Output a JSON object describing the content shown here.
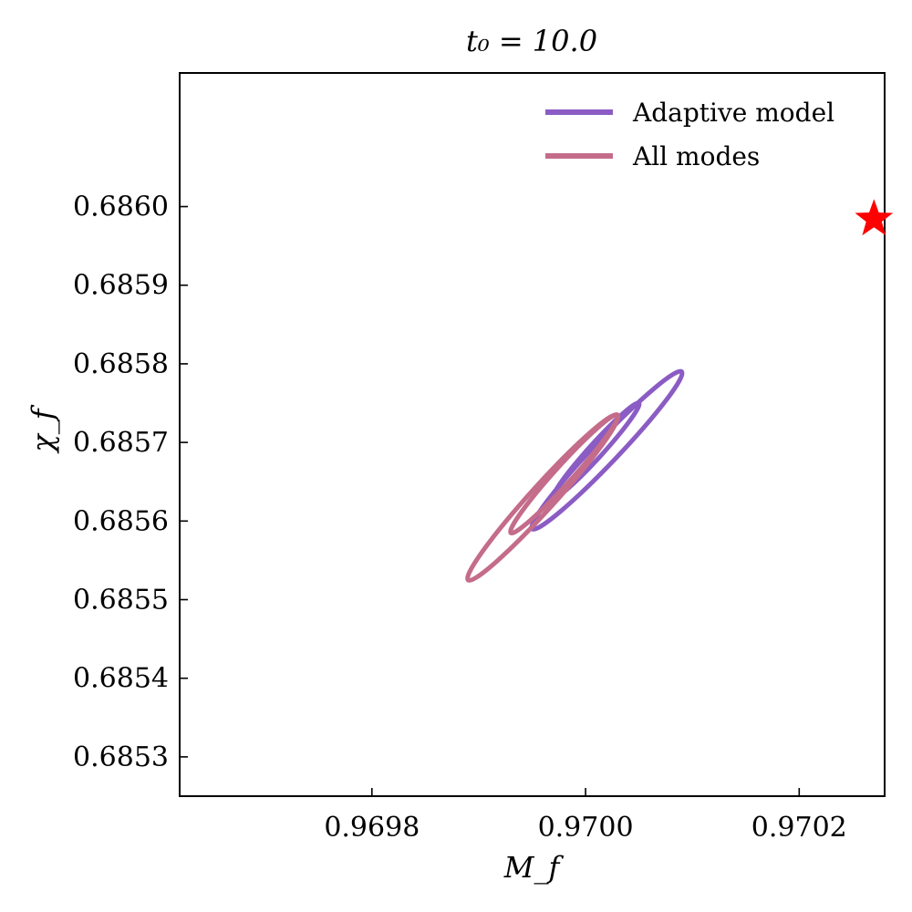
{
  "chart_data": {
    "type": "contour",
    "title": "t₀ = 10.0",
    "xlabel": "M_f",
    "ylabel": "χ_f",
    "xlim": [
      0.96962,
      0.97028
    ],
    "ylim": [
      0.68525,
      0.68617
    ],
    "xticks": [
      0.9698,
      0.97,
      0.9702
    ],
    "xtick_labels": [
      "0.9698",
      "0.9700",
      "0.9702"
    ],
    "yticks": [
      0.6853,
      0.6854,
      0.6855,
      0.6856,
      0.6857,
      0.6858,
      0.6859,
      0.686
    ],
    "ytick_labels": [
      "0.6853",
      "0.6854",
      "0.6855",
      "0.6856",
      "0.6857",
      "0.6858",
      "0.6859",
      "0.6860"
    ],
    "grid": false,
    "legend_position": "top-right",
    "series": [
      {
        "name": "Adaptive model",
        "color": "#8b5cc4",
        "contours": [
          {
            "center": [
              0.97002,
              0.68569
            ],
            "x_extent": [
              0.96995,
              0.97009
            ],
            "y_extent": [
              0.68562,
              0.68582
            ]
          },
          {
            "center": [
              0.97001,
              0.68569
            ],
            "x_extent": [
              0.96997,
              0.97005
            ],
            "y_extent": [
              0.68564,
              0.68576
            ]
          }
        ]
      },
      {
        "name": "All modes",
        "color": "#c46c8a",
        "contours": [
          {
            "center": [
              0.96996,
              0.68563
            ],
            "x_extent": [
              0.96989,
              0.97003
            ],
            "y_extent": [
              0.68552,
              0.68573
            ]
          },
          {
            "center": [
              0.96998,
              0.68566
            ],
            "x_extent": [
              0.96993,
              0.97003
            ],
            "y_extent": [
              0.68558,
              0.68573
            ]
          }
        ]
      }
    ],
    "true_value": {
      "x": 0.97027,
      "y": 0.685984,
      "marker": "star",
      "color": "#ff0000"
    }
  }
}
